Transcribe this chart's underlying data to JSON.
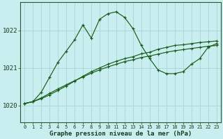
{
  "title": "Graphe pression niveau de la mer (hPa)",
  "background_color": "#c8eef0",
  "grid_color": "#aed8dc",
  "line_color": "#1a5c1a",
  "xlim": [
    -0.5,
    23.5
  ],
  "ylim": [
    1019.55,
    1022.75
  ],
  "yticks": [
    1020,
    1021,
    1022
  ],
  "xtick_labels": [
    "0",
    "1",
    "2",
    "3",
    "4",
    "5",
    "6",
    "7",
    "8",
    "9",
    "10",
    "11",
    "12",
    "13",
    "14",
    "15",
    "16",
    "17",
    "18",
    "19",
    "20",
    "21",
    "22",
    "23"
  ],
  "line1": [
    1020.05,
    1020.1,
    1020.35,
    1020.75,
    1021.15,
    1021.45,
    1021.75,
    1022.15,
    1021.8,
    1022.3,
    1022.45,
    1022.5,
    1022.35,
    1022.05,
    1021.6,
    1021.25,
    1020.95,
    1020.85,
    1020.85,
    1020.9,
    1021.1,
    1021.25,
    1021.55,
    1021.65
  ],
  "line2": [
    1020.05,
    1020.1,
    1020.18,
    1020.28,
    1020.4,
    1020.52,
    1020.65,
    1020.78,
    1020.9,
    1021.0,
    1021.1,
    1021.18,
    1021.25,
    1021.3,
    1021.38,
    1021.42,
    1021.5,
    1021.55,
    1021.6,
    1021.62,
    1021.65,
    1021.68,
    1021.7,
    1021.72
  ],
  "line3": [
    1020.05,
    1020.1,
    1020.2,
    1020.32,
    1020.44,
    1020.55,
    1020.66,
    1020.76,
    1020.86,
    1020.95,
    1021.03,
    1021.1,
    1021.17,
    1021.22,
    1021.28,
    1021.32,
    1021.37,
    1021.42,
    1021.46,
    1021.49,
    1021.52,
    1021.55,
    1021.58,
    1021.6
  ]
}
